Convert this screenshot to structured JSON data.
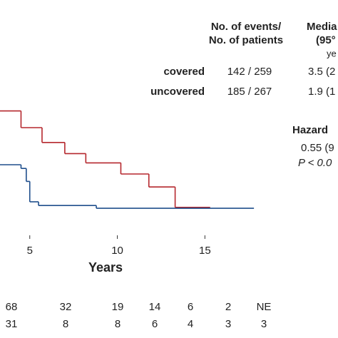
{
  "chart_data": {
    "type": "line",
    "step": "post",
    "header": {
      "events": [
        "No. of events/",
        "No. of patients"
      ],
      "median": [
        "Media",
        "(95°",
        "ye"
      ]
    },
    "series": [
      {
        "name": "covered",
        "color": "#b5272d",
        "events": "142 / 259",
        "median": "3.5 (2",
        "x": [
          3.3,
          4.5,
          5.7,
          7.0,
          8.2,
          10.2,
          11.8,
          13.3,
          15.3
        ],
        "values": [
          0.69,
          0.6,
          0.52,
          0.46,
          0.41,
          0.35,
          0.28,
          0.17,
          0.17
        ]
      },
      {
        "name": "uncovered",
        "color": "#1f4e8c",
        "events": "185 / 267",
        "median": "1.9 (1",
        "x": [
          3.3,
          4.5,
          4.8,
          5.0,
          5.5,
          8.8,
          17.8
        ],
        "values": [
          0.4,
          0.38,
          0.31,
          0.2,
          0.18,
          0.165,
          0.165
        ]
      }
    ],
    "hazard": [
      "Hazard",
      "0.55 (9",
      "P < 0.0"
    ],
    "xlabel": "Years",
    "xlim": [
      3.3,
      22.6
    ],
    "xticks": [
      5,
      10,
      15
    ],
    "ylim": [
      0,
      1
    ],
    "risk_table": [
      [
        "68",
        "32",
        "19",
        "14",
        "6",
        "2",
        "NE"
      ],
      [
        "31",
        "8",
        "8",
        "6",
        "4",
        "3",
        "3"
      ]
    ]
  }
}
